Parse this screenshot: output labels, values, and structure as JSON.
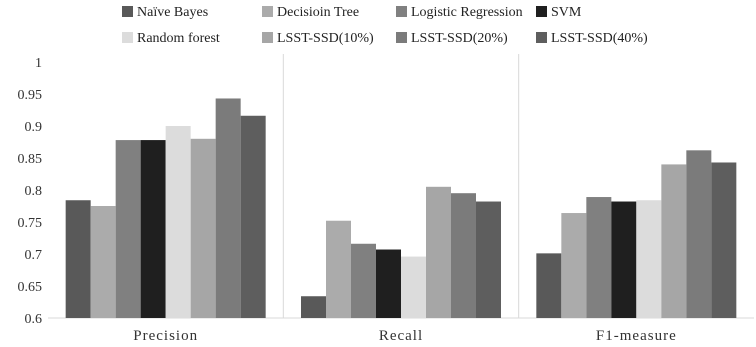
{
  "chart_data": {
    "type": "bar",
    "categories": [
      "Precision",
      "Recall",
      "F1-measure"
    ],
    "ylim": [
      0.6,
      1
    ],
    "yticks": [
      "0.6",
      "0.65",
      "0.7",
      "0.75",
      "0.8",
      "0.85",
      "0.9",
      "0.95",
      "1"
    ],
    "legend_position": "top",
    "grid": false,
    "category_separators": true,
    "series": [
      {
        "name": "Naïve Bayes",
        "color": "#595959",
        "values": [
          0.784,
          0.634,
          0.701
        ]
      },
      {
        "name": "Decisioin Tree",
        "color": "#ababab",
        "values": [
          0.775,
          0.752,
          0.764
        ]
      },
      {
        "name": "Logistic Regression",
        "color": "#808080",
        "values": [
          0.878,
          0.716,
          0.789
        ]
      },
      {
        "name": "SVM",
        "color": "#1f1f1f",
        "values": [
          0.878,
          0.707,
          0.782
        ]
      },
      {
        "name": "Random forest",
        "color": "#dcdcdc",
        "values": [
          0.9,
          0.696,
          0.784
        ]
      },
      {
        "name": "LSST-SSD(10%)",
        "color": "#a6a6a6",
        "values": [
          0.88,
          0.805,
          0.84
        ]
      },
      {
        "name": "LSST-SSD(20%)",
        "color": "#7b7b7b",
        "values": [
          0.943,
          0.795,
          0.862
        ]
      },
      {
        "name": "LSST-SSD(40%)",
        "color": "#5e5e5e",
        "values": [
          0.916,
          0.782,
          0.843
        ]
      }
    ]
  }
}
